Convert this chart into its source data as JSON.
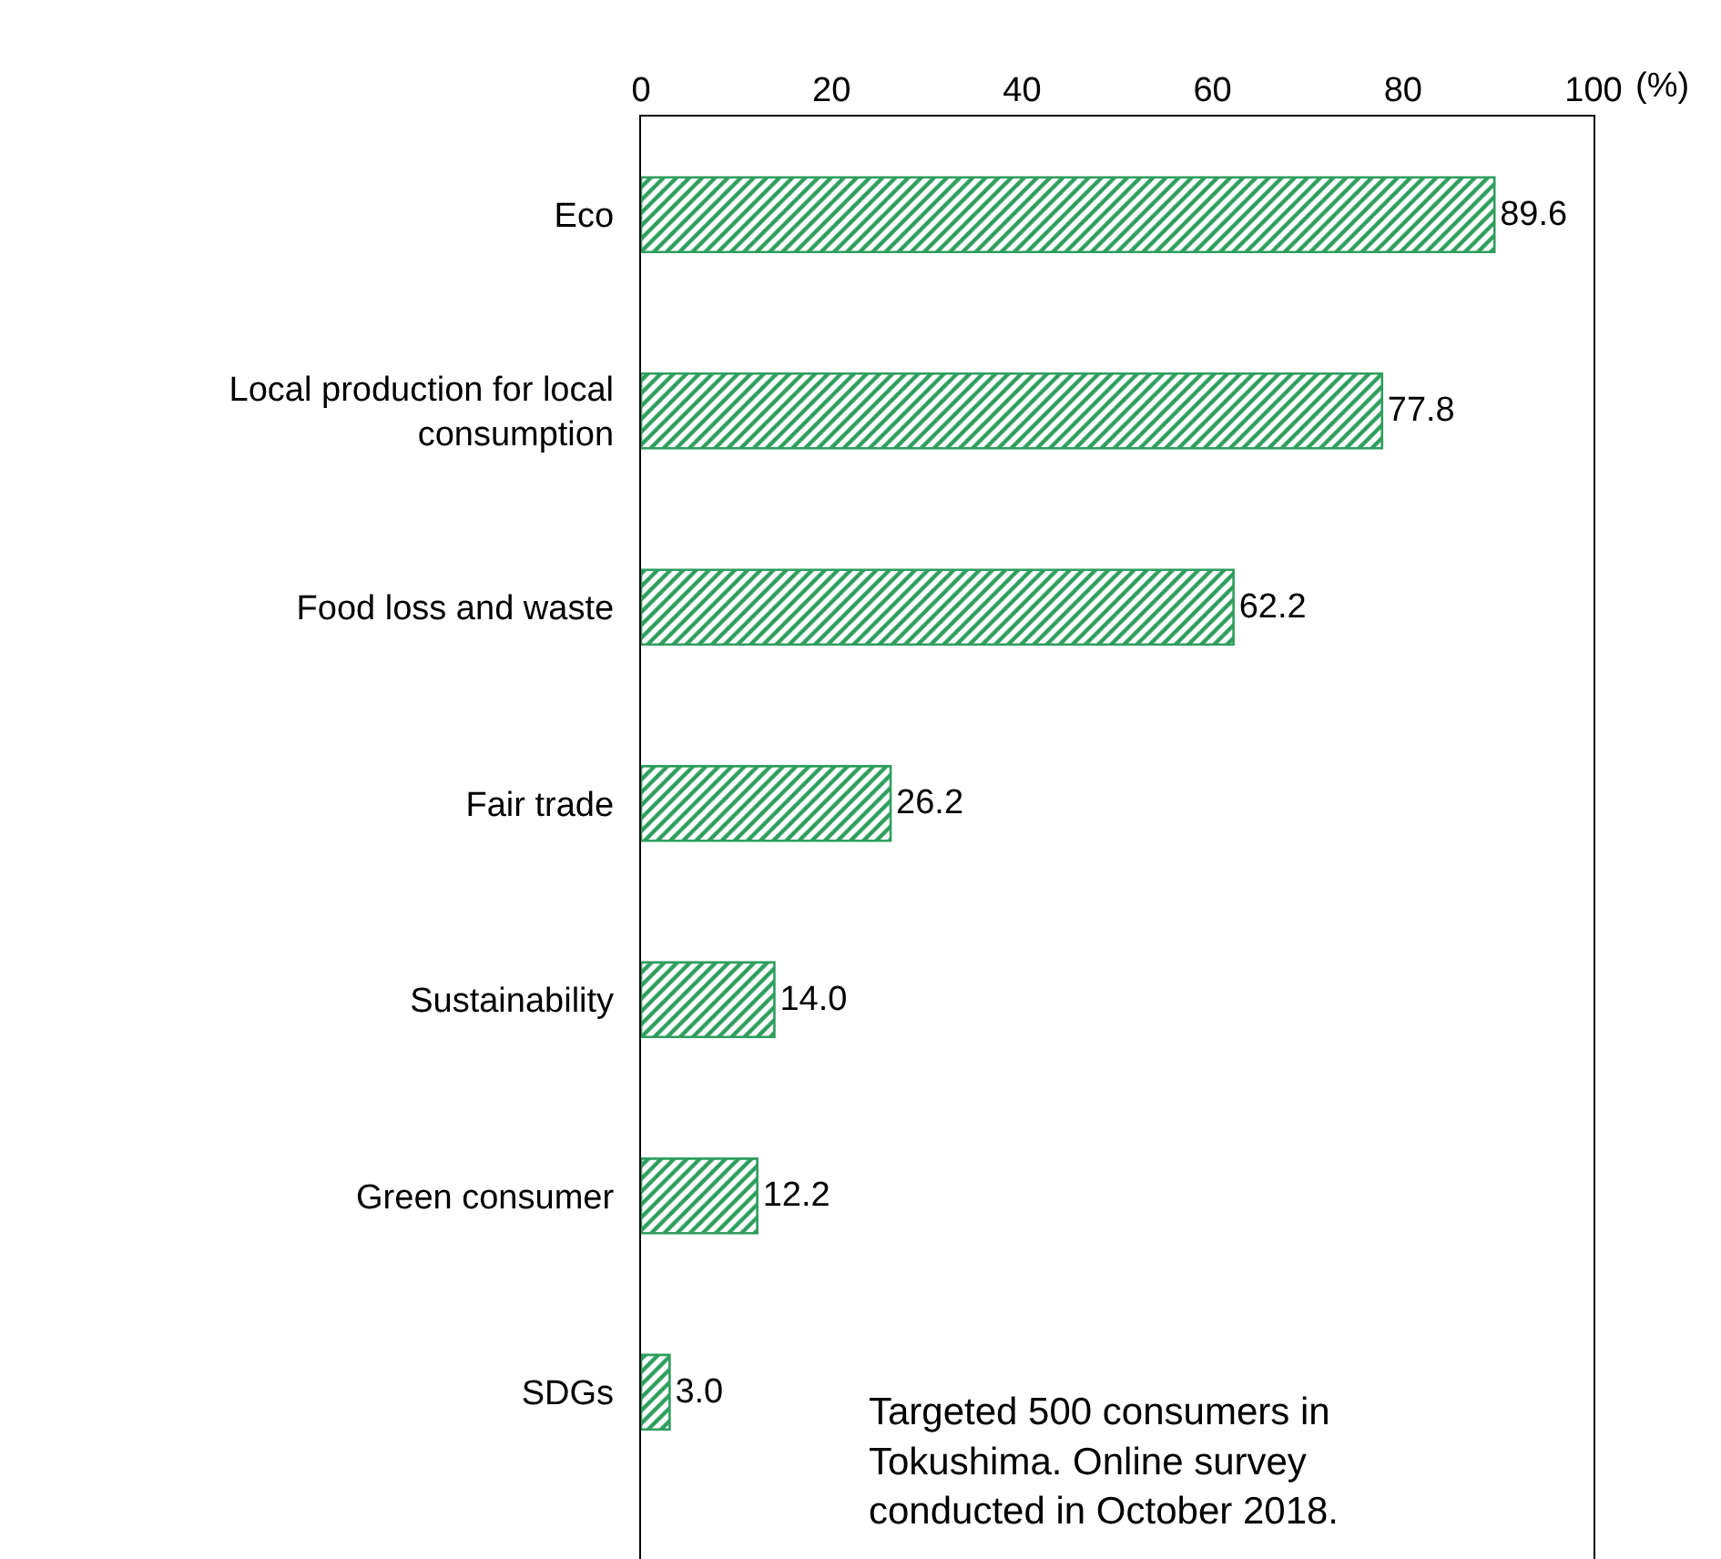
{
  "chart_data": {
    "type": "bar",
    "orientation": "horizontal",
    "categories": [
      "Eco",
      "Local production for local consumption",
      "Food loss and waste",
      "Fair trade",
      "Sustainability",
      "Green consumer",
      "SDGs"
    ],
    "values": [
      89.6,
      77.8,
      62.2,
      26.2,
      14.0,
      12.2,
      3.0
    ],
    "value_labels": [
      "89.6",
      "77.8",
      "62.2",
      "26.2",
      "14.0",
      "12.2",
      "3.0"
    ],
    "color": "#2e9e5e",
    "xlabel": "(%)",
    "xlim": [
      0,
      100
    ],
    "xticks": [
      0,
      20,
      40,
      60,
      80,
      100
    ],
    "grid": false,
    "annotations": [
      "Targeted 500 consumers in Tokushima. Online survey conducted in October 2018."
    ]
  }
}
